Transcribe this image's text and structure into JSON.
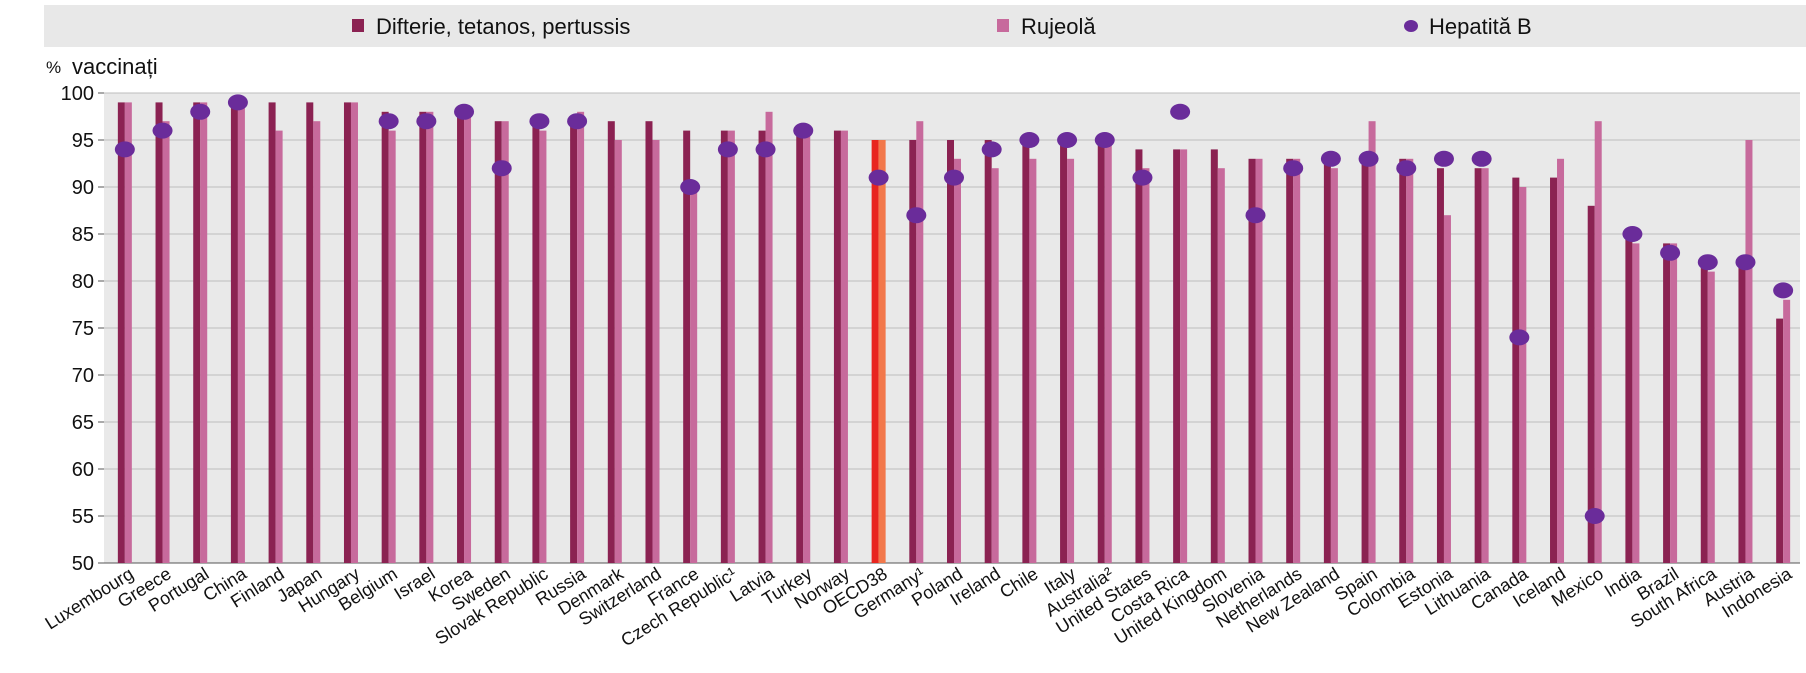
{
  "chart_data": {
    "type": "bar",
    "ylabel_unit": "%",
    "ylabel": "vaccinați",
    "ylim": [
      50,
      100
    ],
    "yticks": [
      50,
      55,
      60,
      65,
      70,
      75,
      80,
      85,
      90,
      95,
      100
    ],
    "grid": true,
    "legend": {
      "position": "top",
      "entries": [
        {
          "label": "Difterie, tetanos, pertussis",
          "marker": "square",
          "color": "#8b2252"
        },
        {
          "label": "Rujeolă",
          "marker": "square",
          "color": "#c76a9c"
        },
        {
          "label": "Hepatită B",
          "marker": "ellipse",
          "color": "#6a2c9a"
        }
      ]
    },
    "categories": [
      "Luxembourg",
      "Greece",
      "Portugal",
      "China",
      "Finland",
      "Japan",
      "Hungary",
      "Belgium",
      "Israel",
      "Korea",
      "Sweden",
      "Slovak Republic",
      "Russia",
      "Denmark",
      "Switzerland",
      "France",
      "Czech Republic¹",
      "Latvia",
      "Turkey",
      "Norway",
      "OECD38",
      "Germany¹",
      "Poland",
      "Ireland",
      "Chile",
      "Italy",
      "Australia²",
      "United States",
      "Costa Rica",
      "United Kingdom",
      "Slovenia",
      "Netherlands",
      "New Zealand",
      "Spain",
      "Colombia",
      "Estonia",
      "Lithuania",
      "Canada",
      "Iceland",
      "Mexico",
      "India",
      "Brazil",
      "South Africa",
      "Austria",
      "Indonesia"
    ],
    "highlight_category": "OECD38",
    "highlight_colors": [
      "#e8251f",
      "#f2784b"
    ],
    "series": [
      {
        "name": "Difterie, tetanos, pertussis",
        "color": "#8b2252",
        "values": [
          99,
          99,
          99,
          99,
          99,
          99,
          99,
          98,
          98,
          98,
          97,
          97,
          97,
          97,
          97,
          96,
          96,
          96,
          96,
          96,
          95,
          95,
          95,
          95,
          95,
          95,
          95,
          94,
          94,
          94,
          93,
          93,
          93,
          93,
          93,
          92,
          92,
          91,
          91,
          88,
          85,
          84,
          82,
          82,
          76
        ]
      },
      {
        "name": "Rujeolă",
        "color": "#c76a9c",
        "values": [
          99,
          97,
          99,
          99,
          96,
          97,
          99,
          96,
          98,
          98,
          97,
          96,
          98,
          95,
          95,
          90,
          96,
          98,
          96,
          96,
          95,
          97,
          93,
          92,
          93,
          93,
          95,
          92,
          94,
          92,
          93,
          93,
          92,
          97,
          93,
          87,
          92,
          90,
          93,
          97,
          84,
          84,
          81,
          95,
          78
        ]
      },
      {
        "name": "Hepatită B",
        "color": "#6a2c9a",
        "values": [
          94,
          96,
          98,
          99,
          null,
          null,
          null,
          97,
          97,
          98,
          92,
          97,
          97,
          null,
          null,
          90,
          94,
          94,
          96,
          null,
          91,
          87,
          91,
          94,
          95,
          95,
          95,
          91,
          98,
          null,
          87,
          92,
          93,
          93,
          92,
          93,
          93,
          74,
          null,
          55,
          85,
          83,
          82,
          82,
          79
        ]
      }
    ]
  }
}
